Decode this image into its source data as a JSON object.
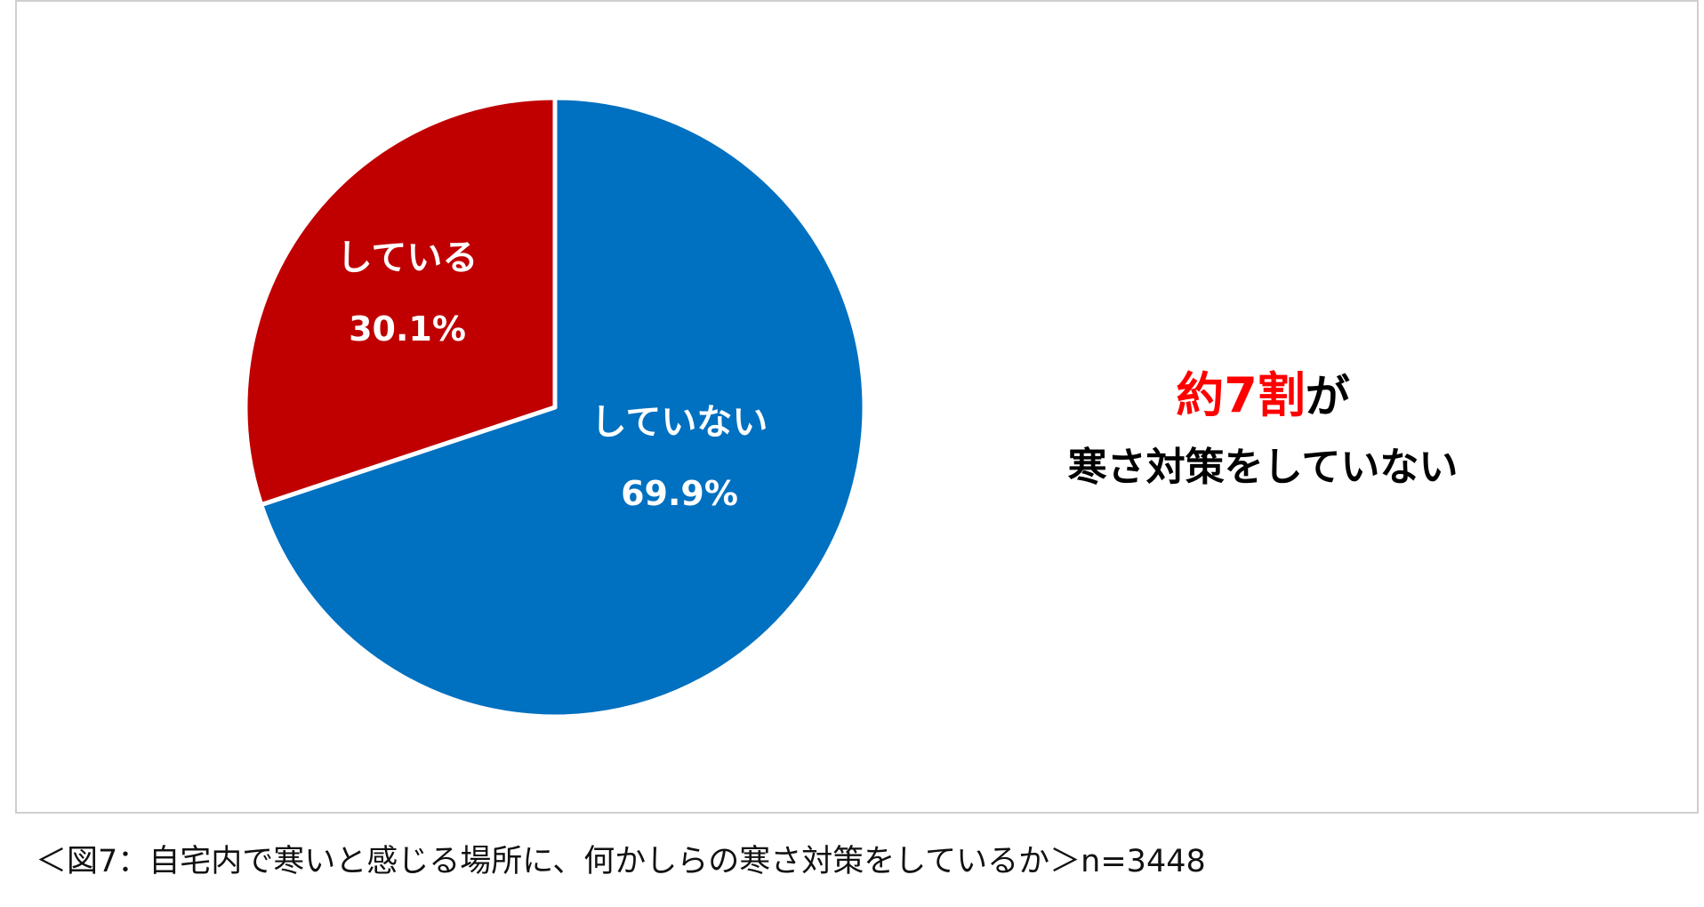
{
  "chart_data": {
    "type": "pie",
    "start_angle_deg": 0,
    "direction": "clockwise",
    "slices": [
      {
        "label": "していない",
        "value": 69.9,
        "value_text": "69.9%",
        "color": "#0070C0"
      },
      {
        "label": "している",
        "value": 30.1,
        "value_text": "30.1%",
        "color": "#C00000"
      }
    ]
  },
  "annotation": {
    "highlight": "約7割",
    "highlight_color": "#FF0000",
    "line1_rest": "が",
    "line2": "寒さ対策をしていない"
  },
  "caption": "＜図7：自宅内で寒いと感じる場所に、何かしらの寒さ対策をしているか＞n=3448"
}
